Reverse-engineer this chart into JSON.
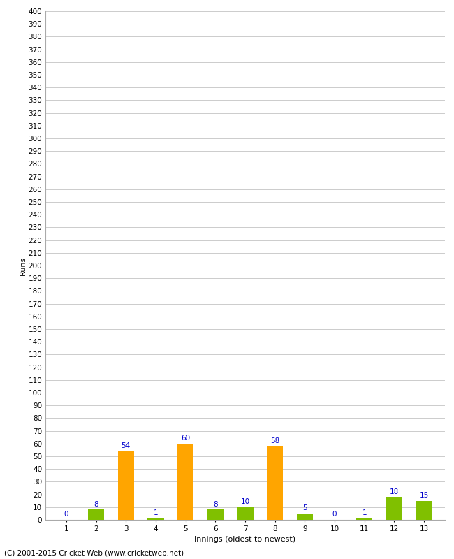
{
  "title": "",
  "xlabel": "Innings (oldest to newest)",
  "ylabel": "Runs",
  "innings": [
    1,
    2,
    3,
    4,
    5,
    6,
    7,
    8,
    9,
    10,
    11,
    12,
    13
  ],
  "values": [
    0,
    8,
    54,
    1,
    60,
    8,
    10,
    58,
    5,
    0,
    1,
    18,
    15
  ],
  "orange_threshold": 50,
  "orange_color": "#FFA500",
  "green_color": "#80C000",
  "bar_width": 0.55,
  "ylim": [
    0,
    400
  ],
  "ytick_step": 10,
  "label_color": "#0000CC",
  "label_fontsize": 7.5,
  "tick_fontsize": 7.5,
  "axis_label_fontsize": 8,
  "background_color": "#FFFFFF",
  "plot_background_color": "#FFFFFF",
  "grid_color": "#CCCCCC",
  "footer": "(C) 2001-2015 Cricket Web (www.cricketweb.net)",
  "footer_fontsize": 7.5
}
